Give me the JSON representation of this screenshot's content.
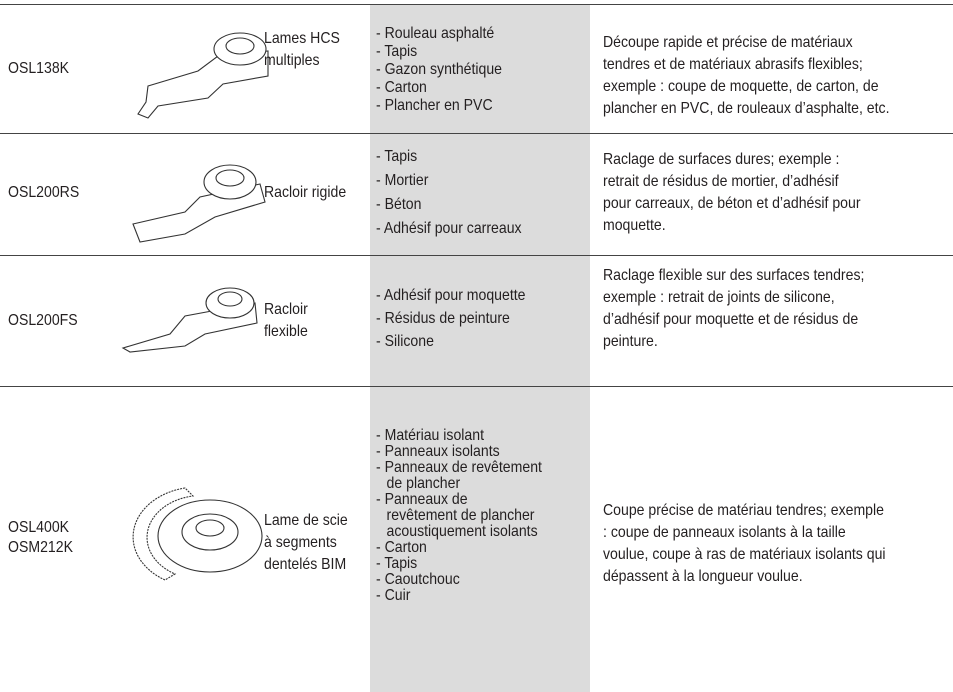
{
  "rows": [
    {
      "model": [
        "OSL138K"
      ],
      "name": [
        "Lames HCS",
        "multiples"
      ],
      "materials": [
        "- Rouleau asphalté",
        "- Tapis",
        "- Gazon synthétique",
        "- Carton",
        "- Plancher en PVC"
      ],
      "description": [
        "Découpe rapide et précise de matériaux",
        "tendres et de matériaux abrasifs flexibles;",
        "exemple : coupe de moquette, de carton, de",
        "plancher en PVC, de rouleaux d’asphalte, etc."
      ]
    },
    {
      "model": [
        "OSL200RS"
      ],
      "name": [
        "Racloir rigide"
      ],
      "materials": [
        "- Tapis",
        "- Mortier",
        "- Béton",
        "- Adhésif pour carreaux"
      ],
      "description": [
        "Raclage de surfaces dures; exemple :",
        "retrait de résidus de mortier, d’adhésif",
        "pour carreaux, de béton et d’adhésif pour",
        "moquette."
      ]
    },
    {
      "model": [
        "OSL200FS"
      ],
      "name": [
        "Racloir",
        "flexible"
      ],
      "materials": [
        "- Adhésif pour moquette",
        "- Résidus de peinture",
        "- Silicone"
      ],
      "description": [
        "Raclage flexible sur des surfaces tendres;",
        "exemple : retrait de joints de silicone,",
        "d’adhésif pour moquette et de résidus de",
        "peinture."
      ]
    },
    {
      "model": [
        "OSL400K",
        "OSM212K"
      ],
      "name": [
        "Lame de scie",
        "à segments",
        "dentelés BIM"
      ],
      "materials": [
        "- Matériau isolant",
        "- Panneaux isolants",
        "- Panneaux de revêtement",
        "de plancher",
        "- Panneaux de",
        "revêtement de plancher",
        "acoustiquement isolants",
        "- Carton",
        "- Tapis",
        "- Caoutchouc",
        "- Cuir"
      ],
      "description": [
        "Coupe précise de matériau tendres; exemple",
        ": coupe de panneaux isolants à la taille",
        "voulue, coupe à ras de matériaux isolants qui",
        "dépassent à la longueur voulue."
      ]
    }
  ]
}
